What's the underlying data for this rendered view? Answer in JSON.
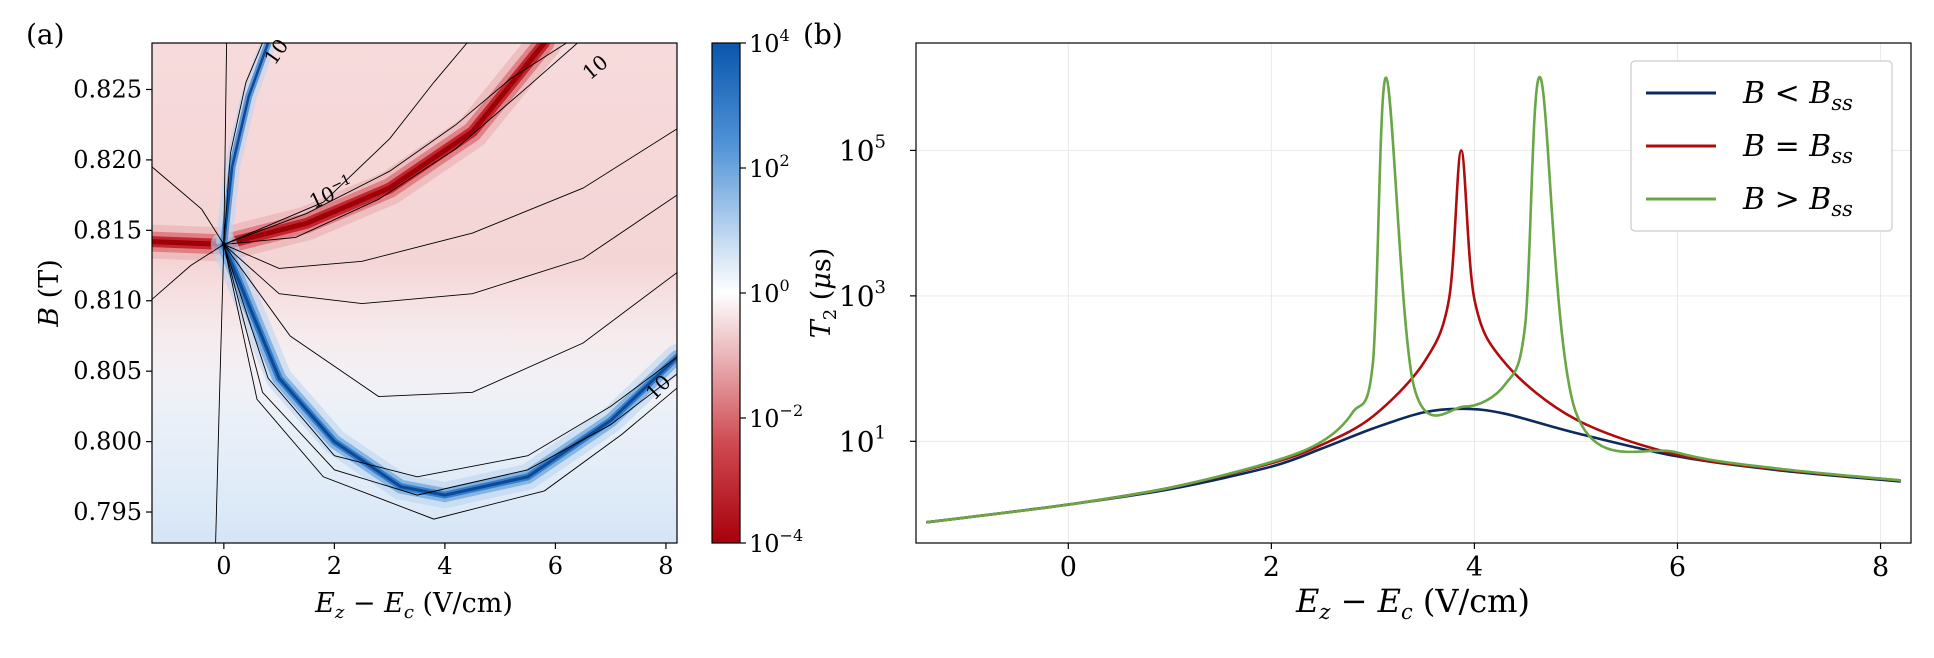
{
  "panels": {
    "a": {
      "label": "(a)"
    },
    "b": {
      "label": "(b)"
    }
  },
  "chart_data": [
    {
      "type": "heatmap",
      "panel": "(a)",
      "title": "",
      "xlabel": "E_z − E_c (V/cm)",
      "ylabel": "B (T)",
      "xlim": [
        -1.3,
        8.2
      ],
      "ylim": [
        0.7928,
        0.8283
      ],
      "x_ticks": [
        0,
        2,
        4,
        6,
        8
      ],
      "x_tick_labels": [
        "0",
        "2",
        "4",
        "6",
        "8"
      ],
      "y_ticks": [
        0.795,
        0.8,
        0.805,
        0.81,
        0.815,
        0.82,
        0.825
      ],
      "y_tick_labels": [
        "0.795",
        "0.800",
        "0.805",
        "0.810",
        "0.815",
        "0.820",
        "0.825"
      ],
      "colorbar": {
        "scale": "log",
        "range": [
          0.0001,
          10000
        ],
        "ticks": [
          0.0001,
          0.01,
          1,
          100,
          10000
        ],
        "tick_labels": [
          "10",
          "10",
          "10",
          "10",
          "10"
        ],
        "tick_exponents": [
          "−4",
          "−2",
          "0",
          "2",
          "4"
        ],
        "label": "T₂ (μs)",
        "colors": {
          "low": "#b2000c",
          "mid": "#ffffff",
          "high": "#0b5bb5"
        }
      },
      "focal_point": {
        "x": 0,
        "y": 0.814
      },
      "red_ridge": [
        [
          -1.3,
          0.8142
        ],
        [
          0,
          0.814
        ],
        [
          1.5,
          0.8155
        ],
        [
          3,
          0.818
        ],
        [
          4.5,
          0.822
        ],
        [
          5.8,
          0.8283
        ]
      ],
      "blue_ridge": [
        [
          0,
          0.814
        ],
        [
          1,
          0.8045
        ],
        [
          2,
          0.8
        ],
        [
          3.2,
          0.7968
        ],
        [
          4,
          0.7962
        ],
        [
          5.5,
          0.7975
        ],
        [
          7,
          0.8015
        ],
        [
          8.2,
          0.806
        ]
      ],
      "contour_labels": [
        {
          "base": "10",
          "exp": "−1"
        },
        {
          "base": "10",
          "exp": ""
        },
        {
          "base": "10",
          "exp": ""
        },
        {
          "base": "10",
          "exp": ""
        }
      ]
    },
    {
      "type": "line",
      "panel": "(b)",
      "title": "",
      "xlabel": "E_z − E_c (V/cm)",
      "ylabel": "T₂ (μs)",
      "yscale": "log",
      "xlim": [
        -1.5,
        8.3
      ],
      "ylim": [
        0.4,
        3000000
      ],
      "x_ticks": [
        0,
        2,
        4,
        6,
        8
      ],
      "x_tick_labels": [
        "0",
        "2",
        "4",
        "6",
        "8"
      ],
      "y_ticks": [
        10,
        1000,
        100000
      ],
      "y_tick_base": "10",
      "y_tick_exponents": [
        "1",
        "3",
        "5"
      ],
      "grid": true,
      "legend": {
        "placement": "top-right"
      },
      "series": [
        {
          "name": "B < Bss",
          "name_main": "B < B",
          "name_sub": "ss",
          "color": "#0d2a5e",
          "x": [
            -1.4,
            -1,
            0,
            1,
            2,
            2.5,
            3,
            3.5,
            3.9,
            4.3,
            5,
            6,
            7,
            8.2
          ],
          "y": [
            0.77,
            0.9,
            1.35,
            2.2,
            4.5,
            8,
            15,
            25,
            28,
            24,
            13,
            6.2,
            4,
            2.8
          ]
        },
        {
          "name": "B = Bss",
          "name_main": "B = B",
          "name_sub": "ss",
          "color": "#b10b0b",
          "x": [
            -1.4,
            -1,
            0,
            1,
            2,
            2.5,
            3,
            3.5,
            3.75,
            3.87,
            4.0,
            4.3,
            5,
            6,
            7,
            8.2
          ],
          "y": [
            0.77,
            0.9,
            1.35,
            2.3,
            5,
            9,
            22,
            120,
            900,
            100000,
            900,
            120,
            20,
            6.5,
            4.1,
            2.9
          ]
        },
        {
          "name": "B > Bss",
          "name_main": "B > B",
          "name_sub": "ss",
          "color": "#69a646",
          "x": [
            -1.4,
            -1,
            0,
            1,
            2,
            2.5,
            2.8,
            3.0,
            3.13,
            3.4,
            3.9,
            4.3,
            4.5,
            4.65,
            5,
            6,
            7,
            8.2
          ],
          "y": [
            0.77,
            0.9,
            1.35,
            2.3,
            5.2,
            10,
            25,
            120,
            1000000,
            60,
            30,
            60,
            400,
            1000000,
            25,
            7,
            4.2,
            2.9
          ]
        }
      ]
    }
  ]
}
